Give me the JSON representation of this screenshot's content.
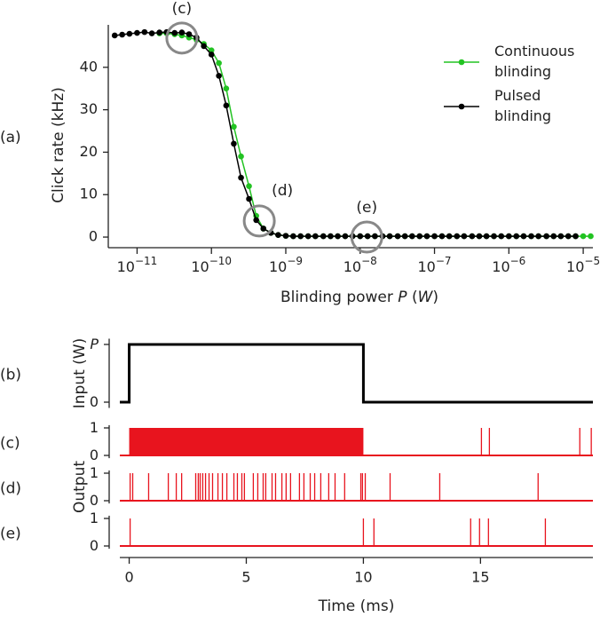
{
  "chart_data": [
    {
      "type": "line",
      "panel_label": "(a)",
      "ylabel": "Click rate (kHz)",
      "xlabel": "Blinding power P (W)",
      "log_x": true,
      "x": [
        5e-12,
        6.3e-12,
        7.9e-12,
        1e-11,
        1.26e-11,
        1.58e-11,
        2e-11,
        2.5e-11,
        3.2e-11,
        4e-11,
        5e-11,
        6.3e-11,
        7.9e-11,
        1e-10,
        1.26e-10,
        1.58e-10,
        2e-10,
        2.5e-10,
        3.2e-10,
        4e-10,
        5e-10,
        6.3e-10,
        7.9e-10,
        1e-09,
        1.26e-09,
        1.58e-09,
        2e-09,
        2.5e-09,
        3.2e-09,
        4e-09,
        5e-09,
        6.3e-09,
        7.9e-09,
        1e-08,
        1.26e-08,
        1.58e-08,
        2e-08,
        2.5e-08,
        3.2e-08,
        4e-08,
        5e-08,
        6.3e-08,
        7.9e-08,
        1e-07,
        1.26e-07,
        1.58e-07,
        2e-07,
        2.5e-07,
        3.2e-07,
        4e-07,
        5e-07,
        6.3e-07,
        7.9e-07,
        1e-06,
        1.26e-06,
        1.58e-06,
        2e-06,
        2.5e-06,
        3.2e-06,
        4e-06,
        5e-06,
        6.3e-06,
        7.9e-06,
        1e-05,
        1.26e-05
      ],
      "series": [
        {
          "name": "Continuous blinding",
          "color": "#22c322",
          "values": [
            null,
            null,
            null,
            null,
            null,
            null,
            48,
            48,
            47.8,
            47.5,
            47,
            46.5,
            45.5,
            44,
            41,
            35,
            26,
            19,
            12,
            5,
            2,
            1,
            0.5,
            0.3,
            0.2,
            0.2,
            0.2,
            0.2,
            0.2,
            0.2,
            0.2,
            0.2,
            0.2,
            0.2,
            0.2,
            0.2,
            0.2,
            0.2,
            0.2,
            0.2,
            0.2,
            0.2,
            0.2,
            0.2,
            0.2,
            0.2,
            0.2,
            0.2,
            0.2,
            0.2,
            0.2,
            0.2,
            0.2,
            0.2,
            0.2,
            0.2,
            0.2,
            0.2,
            0.2,
            0.2,
            0.2,
            0.2,
            0.2,
            0.2,
            0.2
          ]
        },
        {
          "name": "Pulsed blinding",
          "color": "#000000",
          "values": [
            47.5,
            47.7,
            47.9,
            48.1,
            48.3,
            48,
            48.2,
            48.3,
            48.1,
            48.2,
            47.8,
            47,
            45,
            43,
            38,
            31,
            22,
            14,
            9,
            4,
            2,
            1,
            0.5,
            0.3,
            0.2,
            0.2,
            0.2,
            0.2,
            0.2,
            0.2,
            0.2,
            0.2,
            0.2,
            0.2,
            0.2,
            0.2,
            0.2,
            0.2,
            0.2,
            0.2,
            0.2,
            0.2,
            0.2,
            0.2,
            0.2,
            0.2,
            0.2,
            0.2,
            0.2,
            0.2,
            0.2,
            0.2,
            0.2,
            0.2,
            0.2,
            0.2,
            0.2,
            0.2,
            0.2,
            0.2,
            0.2,
            0.2,
            0.2,
            null,
            null
          ]
        }
      ],
      "xlim": [
        4.1e-12,
        1.35e-05
      ],
      "xticks": [
        {
          "value": 1e-11,
          "label": "10−11"
        },
        {
          "value": 1e-10,
          "label": "10−10"
        },
        {
          "value": 1e-09,
          "label": "10−9"
        },
        {
          "value": 1e-08,
          "label": "10−8"
        },
        {
          "value": 1e-07,
          "label": "10−7"
        },
        {
          "value": 1e-06,
          "label": "10−6"
        },
        {
          "value": 1e-05,
          "label": "10−5"
        }
      ],
      "ylim": [
        -2.5,
        50
      ],
      "yticks": [
        0,
        10,
        20,
        30,
        40
      ],
      "legend": "upper right",
      "annotations": [
        {
          "text": "(c)",
          "x": 4e-11,
          "y": 46.9,
          "label_position": "above"
        },
        {
          "text": "(d)",
          "x": 4.4e-10,
          "y": 3.8,
          "label_position": "upper right"
        },
        {
          "text": "(e)",
          "x": 1.23e-08,
          "y": 0,
          "label_position": "above"
        }
      ]
    },
    {
      "type": "step",
      "panel_label": "(b)",
      "ylabel": "Input (W)",
      "color": "#000000",
      "x": [
        -0.4,
        0,
        0,
        10,
        10,
        19.8
      ],
      "values": [
        0,
        0,
        1,
        1,
        0,
        0
      ],
      "xlim": [
        -0.4,
        19.8
      ],
      "ylim": [
        -0.1,
        1.1
      ],
      "yticks": [
        0,
        {
          "value": 1,
          "label": "P"
        }
      ]
    },
    {
      "type": "spikes",
      "panel_label": "(c)",
      "color": "#e8141e",
      "burst": [
        0,
        10
      ],
      "spikes": [
        15.04,
        15.38,
        19.24,
        19.73
      ],
      "xlim": [
        -0.4,
        19.8
      ],
      "ylim": [
        -0.1,
        1.1
      ],
      "yticks": [
        0,
        1
      ]
    },
    {
      "type": "spikes",
      "panel_label": "(d)",
      "ylabel": "Output",
      "color": "#e8141e",
      "spikes": [
        0.04,
        0.15,
        0.83,
        1.67,
        2.01,
        2.24,
        2.84,
        2.95,
        3.03,
        3.14,
        3.26,
        3.41,
        3.56,
        3.79,
        3.98,
        4.17,
        4.47,
        4.62,
        4.81,
        4.92,
        5.3,
        5.49,
        5.72,
        5.83,
        6.1,
        6.25,
        6.52,
        6.7,
        6.89,
        7.27,
        7.46,
        7.73,
        7.92,
        8.18,
        8.52,
        8.79,
        9.2,
        9.89,
        9.96,
        10.08,
        11.14,
        13.26,
        17.46
      ],
      "xlim": [
        -0.4,
        19.8
      ],
      "ylim": [
        -0.1,
        1.1
      ],
      "yticks": [
        0,
        1
      ]
    },
    {
      "type": "spikes",
      "panel_label": "(e)",
      "xlabel": "Time (ms)",
      "color": "#e8141e",
      "spikes": [
        0.04,
        10.0,
        10.45,
        14.58,
        14.96,
        15.34,
        17.77
      ],
      "xlim": [
        -0.4,
        19.8
      ],
      "ylim": [
        -0.1,
        1.1
      ],
      "yticks": [
        0,
        1
      ],
      "xticks": [
        0,
        5,
        10,
        15
      ]
    }
  ]
}
